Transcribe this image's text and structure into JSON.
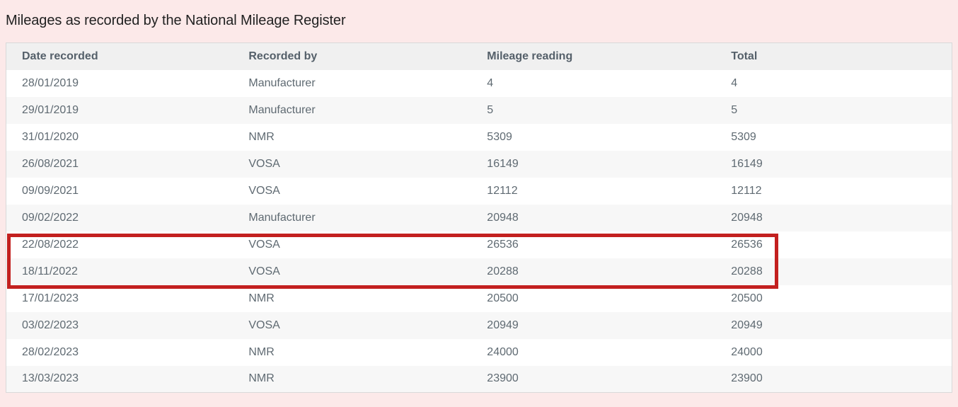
{
  "page": {
    "title": "Mileages as recorded by the National Mileage Register"
  },
  "colors": {
    "page_background": "#fce9e9",
    "header_background": "#f0f0f0",
    "alt_row_background": "#f7f7f7",
    "table_border": "#d9d9d9",
    "text": "#5f6a72",
    "highlight_border": "#c3201f"
  },
  "table": {
    "columns": [
      "Date recorded",
      "Recorded by",
      "Mileage reading",
      "Total"
    ],
    "rows": [
      {
        "date": "28/01/2019",
        "recorded_by": "Manufacturer",
        "mileage": "4",
        "total": "4"
      },
      {
        "date": "29/01/2019",
        "recorded_by": "Manufacturer",
        "mileage": "5",
        "total": "5"
      },
      {
        "date": "31/01/2020",
        "recorded_by": "NMR",
        "mileage": "5309",
        "total": "5309"
      },
      {
        "date": "26/08/2021",
        "recorded_by": "VOSA",
        "mileage": "16149",
        "total": "16149"
      },
      {
        "date": "09/09/2021",
        "recorded_by": "VOSA",
        "mileage": "12112",
        "total": "12112"
      },
      {
        "date": "09/02/2022",
        "recorded_by": "Manufacturer",
        "mileage": "20948",
        "total": "20948"
      },
      {
        "date": "22/08/2022",
        "recorded_by": "VOSA",
        "mileage": "26536",
        "total": "26536"
      },
      {
        "date": "18/11/2022",
        "recorded_by": "VOSA",
        "mileage": "20288",
        "total": "20288"
      },
      {
        "date": "17/01/2023",
        "recorded_by": "NMR",
        "mileage": "20500",
        "total": "20500"
      },
      {
        "date": "03/02/2023",
        "recorded_by": "VOSA",
        "mileage": "20949",
        "total": "20949"
      },
      {
        "date": "28/02/2023",
        "recorded_by": "NMR",
        "mileage": "24000",
        "total": "24000"
      },
      {
        "date": "13/03/2023",
        "recorded_by": "NMR",
        "mileage": "23900",
        "total": "23900"
      }
    ],
    "highlight": {
      "description": "red annotation box around rows 22/08/2022 and 18/11/2022",
      "highlighted_dates": [
        "22/08/2022",
        "18/11/2022"
      ]
    }
  }
}
